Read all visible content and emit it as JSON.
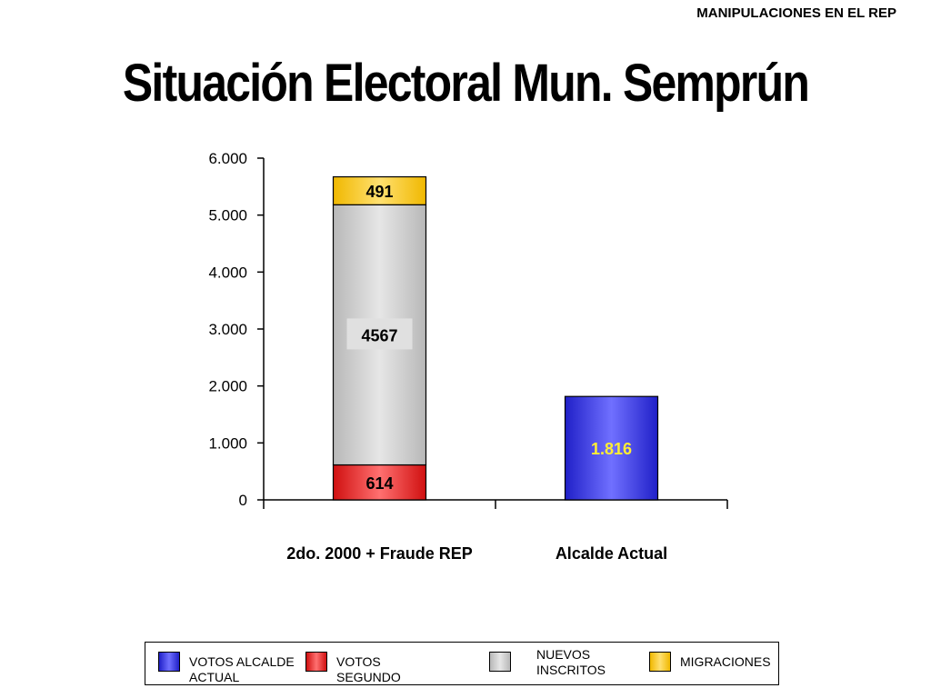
{
  "header": {
    "note": "MANIPULACIONES EN EL REP",
    "title": "Situación Electoral Mun. Semprún"
  },
  "colors": {
    "votos_alcalde": "#3a3af0",
    "votos_segundo": "#f03a3a",
    "nuevos_inscritos": "#d0d0d0",
    "migraciones": "#ffcc00"
  },
  "chart_data": {
    "type": "bar",
    "stacked": true,
    "categories": [
      "2do. 2000 + Fraude REP",
      "Alcalde Actual"
    ],
    "series": [
      {
        "name": "VOTOS ALCALDE ACTUAL",
        "values": [
          0,
          1816
        ],
        "labels": [
          "",
          "1.816"
        ]
      },
      {
        "name": "VOTOS SEGUNDO",
        "values": [
          614,
          0
        ],
        "labels": [
          "614",
          ""
        ]
      },
      {
        "name": "NUEVOS INSCRITOS",
        "values": [
          4567,
          0
        ],
        "labels": [
          "4567",
          ""
        ]
      },
      {
        "name": "MIGRACIONES",
        "values": [
          491,
          0
        ],
        "labels": [
          "491",
          ""
        ]
      }
    ],
    "yticks": [
      "0",
      "1.000",
      "2.000",
      "3.000",
      "4.000",
      "5.000",
      "6.000"
    ],
    "ylim": [
      0,
      6000
    ],
    "grid": false,
    "legend_position": "bottom"
  },
  "legend": {
    "items": [
      {
        "label": "VOTOS ALCALDE\nACTUAL"
      },
      {
        "label": "VOTOS\nSEGUNDO"
      },
      {
        "label": "NUEVOS\nINSCRITOS"
      },
      {
        "label": "MIGRACIONES"
      }
    ]
  }
}
